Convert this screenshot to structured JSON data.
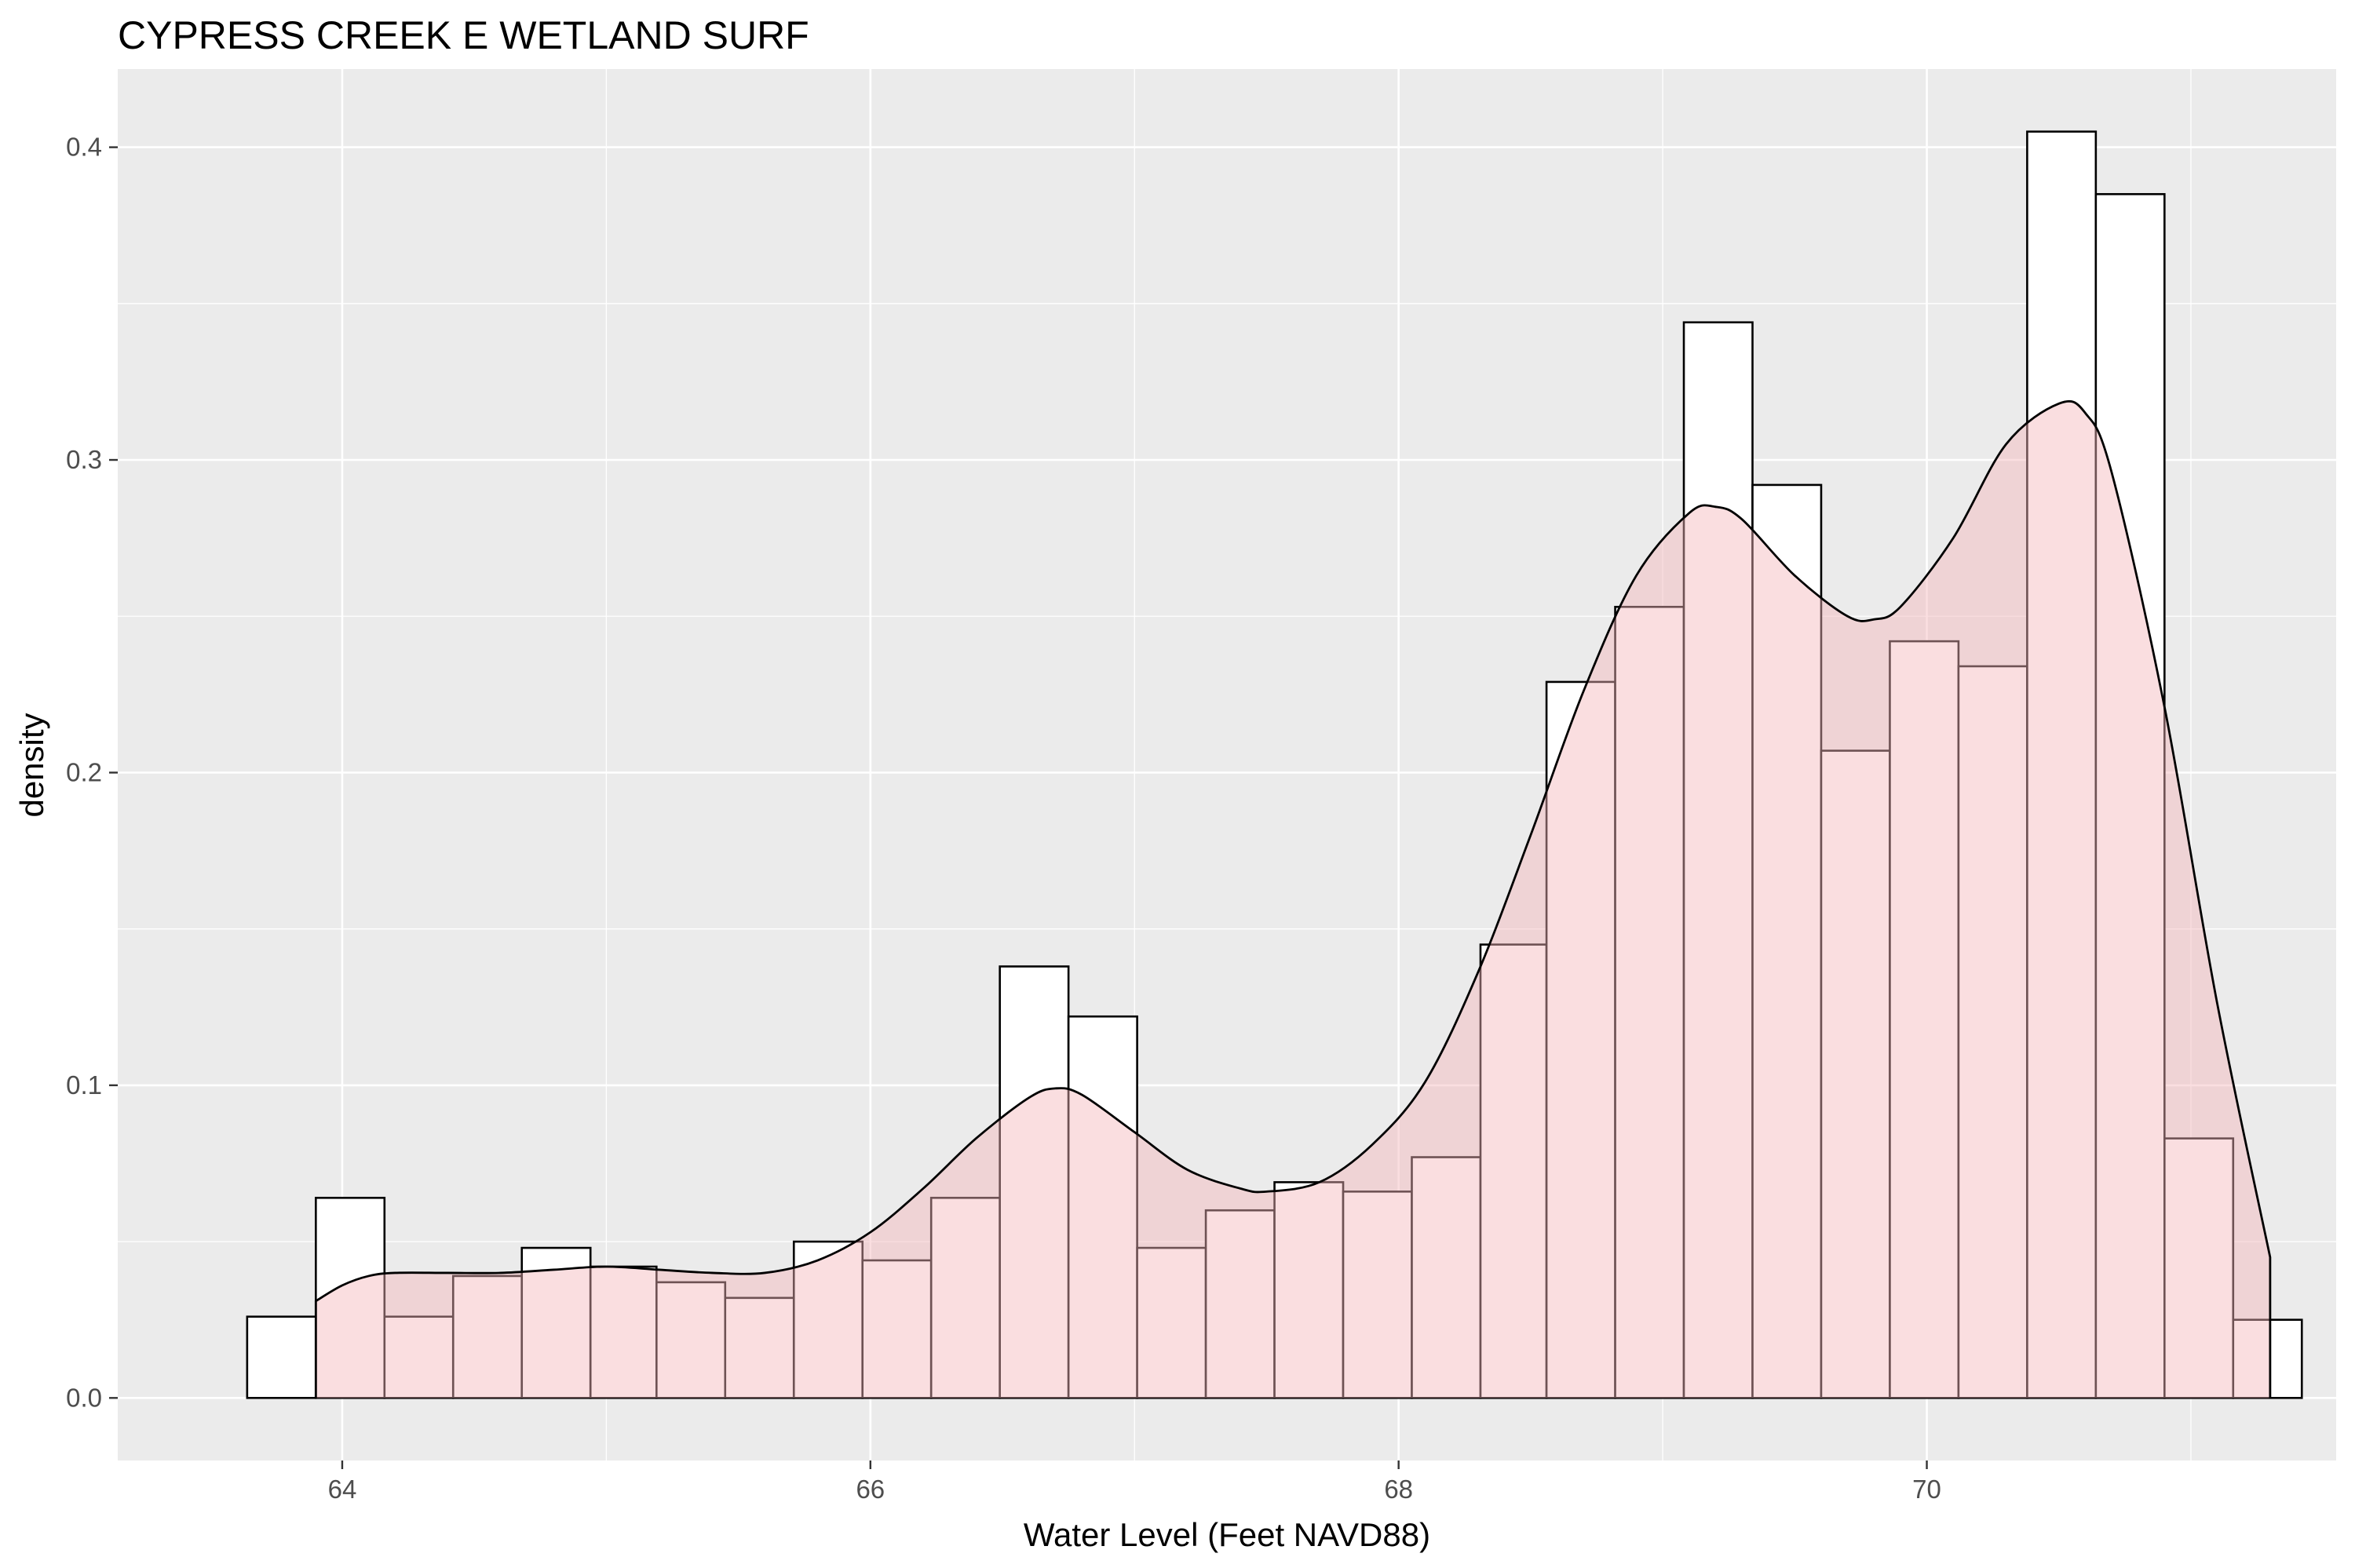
{
  "chart_data": {
    "type": "histogram",
    "title": "CYPRESS CREEK E WETLAND SURF",
    "xlabel": "Water Level (Feet NAVD88)",
    "ylabel": "density",
    "xlim": [
      63.15,
      71.55
    ],
    "ylim": [
      -0.02,
      0.425
    ],
    "x_ticks": [
      64,
      66,
      68,
      70
    ],
    "x_tick_labels": [
      "64",
      "66",
      "68",
      "70"
    ],
    "y_ticks": [
      0.0,
      0.1,
      0.2,
      0.3,
      0.4
    ],
    "y_tick_labels": [
      "0.0",
      "0.1",
      "0.2",
      "0.3",
      "0.4"
    ],
    "grid": true,
    "series": [
      {
        "kind": "histogram",
        "fill": "#ffffff",
        "stroke": "#000000",
        "bins": [
          {
            "x0": 63.64,
            "x1": 63.9,
            "density": 0.026
          },
          {
            "x0": 63.9,
            "x1": 64.16,
            "density": 0.064
          },
          {
            "x0": 64.16,
            "x1": 64.42,
            "density": 0.026
          },
          {
            "x0": 64.42,
            "x1": 64.68,
            "density": 0.039
          },
          {
            "x0": 64.68,
            "x1": 64.94,
            "density": 0.048
          },
          {
            "x0": 64.94,
            "x1": 65.19,
            "density": 0.042
          },
          {
            "x0": 65.19,
            "x1": 65.45,
            "density": 0.037
          },
          {
            "x0": 65.45,
            "x1": 65.71,
            "density": 0.032
          },
          {
            "x0": 65.71,
            "x1": 65.97,
            "density": 0.05
          },
          {
            "x0": 65.97,
            "x1": 66.23,
            "density": 0.044
          },
          {
            "x0": 66.23,
            "x1": 66.49,
            "density": 0.064
          },
          {
            "x0": 66.49,
            "x1": 66.75,
            "density": 0.138
          },
          {
            "x0": 66.75,
            "x1": 67.01,
            "density": 0.122
          },
          {
            "x0": 67.01,
            "x1": 67.27,
            "density": 0.048
          },
          {
            "x0": 67.27,
            "x1": 67.53,
            "density": 0.06
          },
          {
            "x0": 67.53,
            "x1": 67.79,
            "density": 0.069
          },
          {
            "x0": 67.79,
            "x1": 68.05,
            "density": 0.066
          },
          {
            "x0": 68.05,
            "x1": 68.31,
            "density": 0.077
          },
          {
            "x0": 68.31,
            "x1": 68.56,
            "density": 0.145
          },
          {
            "x0": 68.56,
            "x1": 68.82,
            "density": 0.229
          },
          {
            "x0": 68.82,
            "x1": 69.08,
            "density": 0.253
          },
          {
            "x0": 69.08,
            "x1": 69.34,
            "density": 0.344
          },
          {
            "x0": 69.34,
            "x1": 69.6,
            "density": 0.292
          },
          {
            "x0": 69.6,
            "x1": 69.86,
            "density": 0.207
          },
          {
            "x0": 69.86,
            "x1": 70.12,
            "density": 0.242
          },
          {
            "x0": 70.12,
            "x1": 70.38,
            "density": 0.234
          },
          {
            "x0": 70.38,
            "x1": 70.64,
            "density": 0.405
          },
          {
            "x0": 70.64,
            "x1": 70.9,
            "density": 0.385
          },
          {
            "x0": 70.9,
            "x1": 71.16,
            "density": 0.083
          },
          {
            "x0": 71.16,
            "x1": 71.42,
            "density": 0.025
          }
        ]
      },
      {
        "kind": "density",
        "fill": "#f5b5bb",
        "fill_opacity": 0.45,
        "stroke": "#000000",
        "x": [
          63.9,
          64.0,
          64.1,
          64.2,
          64.4,
          64.6,
          64.8,
          65.0,
          65.2,
          65.4,
          65.6,
          65.8,
          66.0,
          66.2,
          66.4,
          66.6,
          66.7,
          66.8,
          67.0,
          67.2,
          67.4,
          67.5,
          67.7,
          67.9,
          68.1,
          68.3,
          68.5,
          68.7,
          68.9,
          69.1,
          69.2,
          69.3,
          69.5,
          69.7,
          69.8,
          69.9,
          70.1,
          70.3,
          70.5,
          70.6,
          70.7,
          70.9,
          71.1,
          71.3
        ],
        "y": [
          0.031,
          0.036,
          0.039,
          0.04,
          0.04,
          0.04,
          0.041,
          0.042,
          0.041,
          0.04,
          0.04,
          0.044,
          0.053,
          0.067,
          0.083,
          0.096,
          0.099,
          0.097,
          0.085,
          0.073,
          0.067,
          0.066,
          0.069,
          0.081,
          0.101,
          0.136,
          0.18,
          0.226,
          0.263,
          0.283,
          0.285,
          0.281,
          0.263,
          0.25,
          0.249,
          0.253,
          0.275,
          0.305,
          0.318,
          0.315,
          0.296,
          0.221,
          0.126,
          0.045
        ]
      }
    ]
  }
}
